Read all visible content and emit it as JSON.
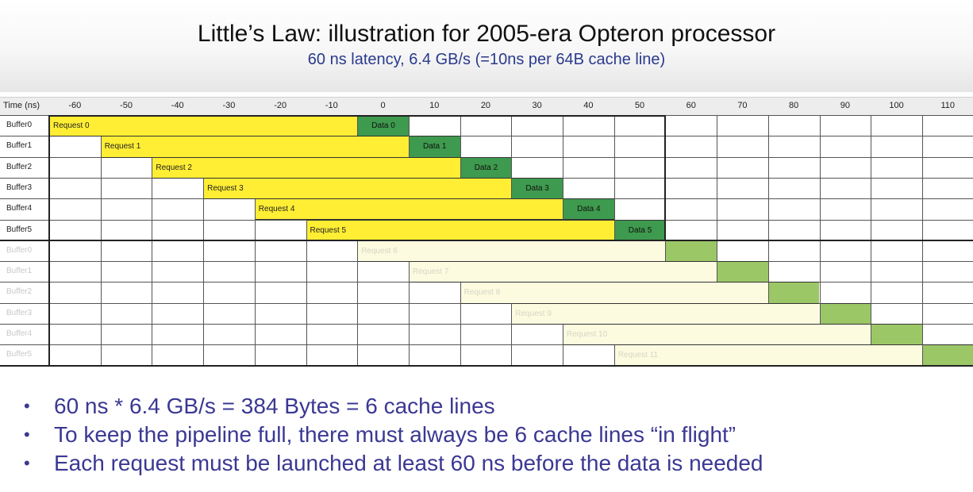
{
  "title": "Little’s Law: illustration for 2005-era Opteron processor",
  "subtitle": "60 ns latency, 6.4 GB/s (=10ns per 64B cache line)",
  "table": {
    "time_label": "Time (ns)",
    "columns": [
      "-60",
      "-50",
      "-40",
      "-30",
      "-20",
      "-10",
      "0",
      "10",
      "20",
      "30",
      "40",
      "50",
      "60",
      "70",
      "80",
      "90",
      "100",
      "110"
    ],
    "rows": [
      {
        "buffer": "Buffer0",
        "request": "Request 0",
        "data": "Data 0",
        "request_start_ns": -60,
        "data_start_ns": 0,
        "faded": false
      },
      {
        "buffer": "Buffer1",
        "request": "Request 1",
        "data": "Data 1",
        "request_start_ns": -50,
        "data_start_ns": 10,
        "faded": false
      },
      {
        "buffer": "Buffer2",
        "request": "Request 2",
        "data": "Data 2",
        "request_start_ns": -40,
        "data_start_ns": 20,
        "faded": false
      },
      {
        "buffer": "Buffer3",
        "request": "Request 3",
        "data": "Data 3",
        "request_start_ns": -30,
        "data_start_ns": 30,
        "faded": false
      },
      {
        "buffer": "Buffer4",
        "request": "Request 4",
        "data": "Data 4",
        "request_start_ns": -20,
        "data_start_ns": 40,
        "faded": false
      },
      {
        "buffer": "Buffer5",
        "request": "Request 5",
        "data": "Data 5",
        "request_start_ns": -10,
        "data_start_ns": 50,
        "faded": false
      },
      {
        "buffer": "Buffer0",
        "request": "Request 6",
        "data": "",
        "request_start_ns": 0,
        "data_start_ns": 60,
        "faded": true
      },
      {
        "buffer": "Buffer1",
        "request": "Request 7",
        "data": "",
        "request_start_ns": 10,
        "data_start_ns": 70,
        "faded": true
      },
      {
        "buffer": "Buffer2",
        "request": "Request 8",
        "data": "",
        "request_start_ns": 20,
        "data_start_ns": 80,
        "faded": true
      },
      {
        "buffer": "Buffer3",
        "request": "Request 9",
        "data": "",
        "request_start_ns": 30,
        "data_start_ns": 90,
        "faded": true
      },
      {
        "buffer": "Buffer4",
        "request": "Request 10",
        "data": "",
        "request_start_ns": 40,
        "data_start_ns": 100,
        "faded": true
      },
      {
        "buffer": "Buffer5",
        "request": "Request 11",
        "data": "",
        "request_start_ns": 50,
        "data_start_ns": 110,
        "faded": true
      }
    ]
  },
  "bullets": [
    "60 ns * 6.4 GB/s = 384 Bytes = 6 cache lines",
    "To keep the pipeline full, there must always be 6 cache lines “in flight”",
    "Each request must be launched at least 60 ns before the data is needed"
  ],
  "colors": {
    "request": "#ffee33",
    "request_faded": "#fcfbe0",
    "data": "#3e9a4e",
    "data_faded": "#9bc766",
    "bullet_text": "#3b3893",
    "subtitle_text": "#2a3a8c"
  }
}
